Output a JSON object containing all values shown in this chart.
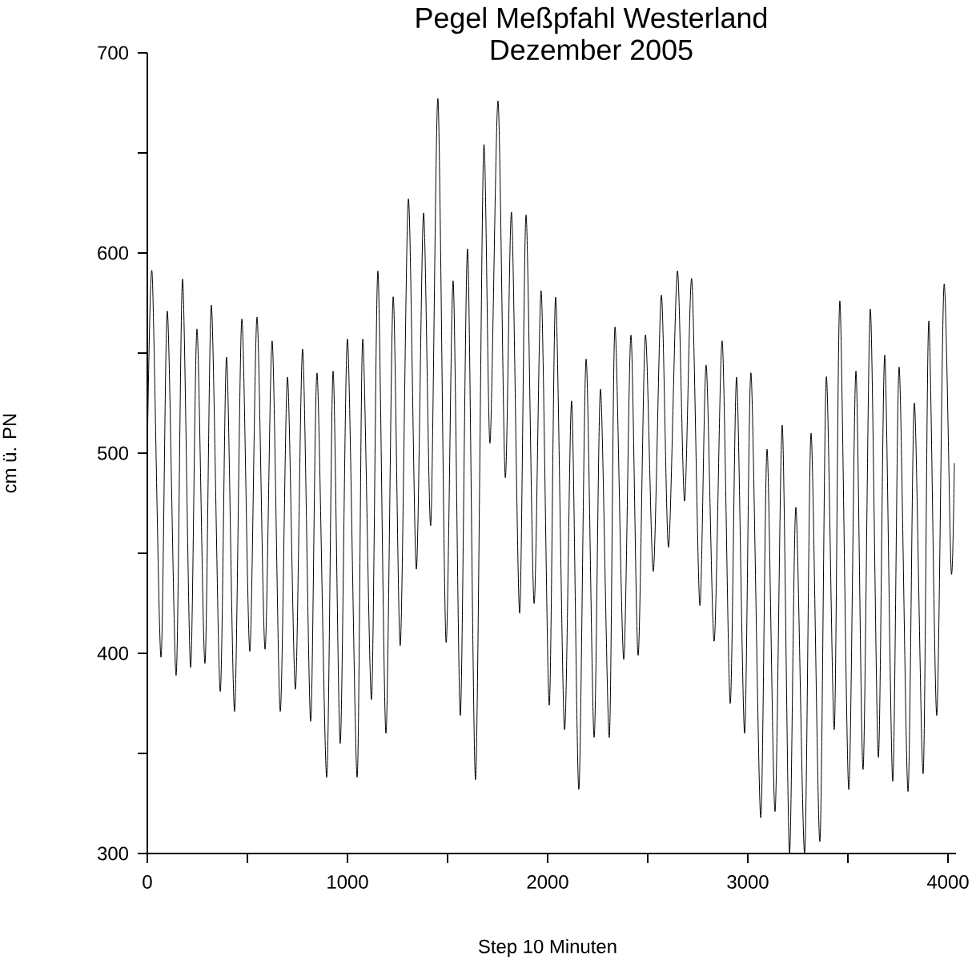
{
  "chart_data": {
    "type": "line",
    "title": "Pegel Meßpfahl Westerland",
    "subtitle": "Dezember 2005",
    "xlabel": "Step 10 Minuten",
    "ylabel": "cm ü. PN",
    "xlim": [
      0,
      4040
    ],
    "ylim": [
      300,
      700
    ],
    "xticks": [
      0,
      {
        "value": 500,
        "label": null
      },
      1000,
      {
        "value": 1500,
        "label": null
      },
      2000,
      {
        "value": 2500,
        "label": null
      },
      3000,
      {
        "value": 3500,
        "label": null
      },
      4000
    ],
    "yticks": [
      300,
      {
        "value": 350,
        "label": null
      },
      400,
      {
        "value": 450,
        "label": null
      },
      500,
      {
        "value": 550,
        "label": null
      },
      600,
      {
        "value": 650,
        "label": null
      },
      700
    ],
    "grid": false,
    "line_style": "solid",
    "series": [
      {
        "color": "#000000",
        "x": [
          0,
          24,
          68,
          100,
          144,
          176,
          216,
          248,
          288,
          320,
          364,
          396,
          436,
          472,
          512,
          548,
          588,
          624,
          664,
          700,
          740,
          776,
          816,
          848,
          896,
          928,
          964,
          1000,
          1048,
          1076,
          1120,
          1152,
          1192,
          1228,
          1264,
          1304,
          1344,
          1380,
          1416,
          1452,
          1492,
          1528,
          1564,
          1600,
          1640,
          1680,
          1712,
          1752,
          1788,
          1820,
          1860,
          1892,
          1932,
          1968,
          2008,
          2040,
          2084,
          2120,
          2156,
          2192,
          2232,
          2264,
          2308,
          2336,
          2380,
          2416,
          2452,
          2488,
          2528,
          2568,
          2604,
          2648,
          2684,
          2720,
          2760,
          2792,
          2832,
          2872,
          2912,
          2944,
          2984,
          3016,
          3064,
          3096,
          3136,
          3172,
          3208,
          3240,
          3284,
          3316,
          3360,
          3392,
          3432,
          3460,
          3504,
          3540,
          3576,
          3612,
          3652,
          3684,
          3724,
          3756,
          3800,
          3832,
          3876,
          3904,
          3944,
          3980,
          4016,
          4032
        ],
        "values": [
          500,
          590,
          398,
          571,
          389,
          587,
          393,
          562,
          395,
          574,
          381,
          548,
          371,
          567,
          401,
          568,
          402,
          556,
          371,
          538,
          382,
          552,
          366,
          540,
          338,
          541,
          355,
          557,
          338,
          557,
          377,
          591,
          360,
          578,
          404,
          627,
          442,
          620,
          464,
          677,
          406,
          586,
          369,
          602,
          337,
          652,
          505,
          676,
          488,
          620,
          420,
          619,
          425,
          581,
          374,
          578,
          362,
          526,
          332,
          547,
          358,
          532,
          358,
          563,
          397,
          559,
          399,
          559,
          441,
          579,
          453,
          591,
          476,
          587,
          424,
          544,
          406,
          556,
          375,
          538,
          360,
          540,
          318,
          502,
          321,
          514,
          300,
          473,
          300,
          510,
          306,
          538,
          362,
          576,
          332,
          541,
          342,
          572,
          348,
          549,
          336,
          543,
          331,
          525,
          340,
          566,
          369,
          584,
          441,
          495
        ]
      }
    ]
  }
}
